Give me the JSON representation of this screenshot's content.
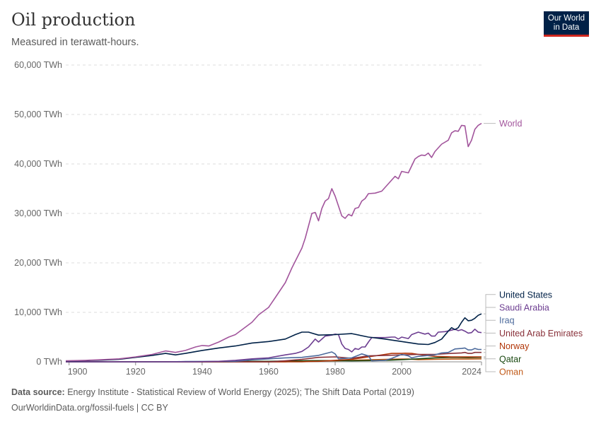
{
  "header": {
    "title": "Oil production",
    "subtitle": "Measured in terawatt-hours."
  },
  "logo": {
    "line1": "Our World",
    "line2": "in Data"
  },
  "footer": {
    "source_label": "Data source:",
    "source_text": "Energy Institute - Statistical Review of World Energy (2025); The Shift Data Portal (2019)",
    "url_text": "OurWorldinData.org/fossil-fuels | CC BY"
  },
  "chart_data": {
    "type": "line",
    "title": "Oil production",
    "subtitle": "Measured in terawatt-hours.",
    "xlim": [
      1899,
      2024
    ],
    "ylim": [
      0,
      60000
    ],
    "x_ticks": [
      1900,
      1920,
      1940,
      1960,
      1980,
      2000,
      2024
    ],
    "y_ticks": [
      {
        "value": 0,
        "label": "0 TWh"
      },
      {
        "value": 10000,
        "label": "10,000 TWh"
      },
      {
        "value": 20000,
        "label": "20,000 TWh"
      },
      {
        "value": 30000,
        "label": "30,000 TWh"
      },
      {
        "value": 40000,
        "label": "40,000 TWh"
      },
      {
        "value": 50000,
        "label": "50,000 TWh"
      },
      {
        "value": 60000,
        "label": "60,000 TWh"
      }
    ],
    "grid": true,
    "legend": "right (direct labels)",
    "series": [
      {
        "name": "World",
        "color": "#a2559c",
        "points": [
          [
            1899,
            200
          ],
          [
            1905,
            300
          ],
          [
            1910,
            450
          ],
          [
            1915,
            600
          ],
          [
            1920,
            1000
          ],
          [
            1925,
            1500
          ],
          [
            1929,
            2200
          ],
          [
            1932,
            1900
          ],
          [
            1935,
            2300
          ],
          [
            1938,
            3000
          ],
          [
            1940,
            3300
          ],
          [
            1942,
            3200
          ],
          [
            1945,
            4000
          ],
          [
            1948,
            5000
          ],
          [
            1950,
            5500
          ],
          [
            1952,
            6500
          ],
          [
            1955,
            8000
          ],
          [
            1957,
            9500
          ],
          [
            1960,
            11000
          ],
          [
            1962,
            13000
          ],
          [
            1965,
            16000
          ],
          [
            1967,
            19000
          ],
          [
            1970,
            23000
          ],
          [
            1971,
            25000
          ],
          [
            1972,
            27500
          ],
          [
            1973,
            30000
          ],
          [
            1974,
            30200
          ],
          [
            1975,
            28500
          ],
          [
            1976,
            31000
          ],
          [
            1977,
            32500
          ],
          [
            1978,
            33000
          ],
          [
            1979,
            35000
          ],
          [
            1980,
            33500
          ],
          [
            1981,
            31500
          ],
          [
            1982,
            29500
          ],
          [
            1983,
            29000
          ],
          [
            1984,
            29800
          ],
          [
            1985,
            29500
          ],
          [
            1986,
            31000
          ],
          [
            1987,
            31200
          ],
          [
            1988,
            32500
          ],
          [
            1989,
            33000
          ],
          [
            1990,
            34000
          ],
          [
            1992,
            34100
          ],
          [
            1994,
            34500
          ],
          [
            1996,
            36000
          ],
          [
            1998,
            37500
          ],
          [
            1999,
            37000
          ],
          [
            2000,
            38500
          ],
          [
            2002,
            38200
          ],
          [
            2004,
            41000
          ],
          [
            2005,
            41500
          ],
          [
            2006,
            41800
          ],
          [
            2007,
            41700
          ],
          [
            2008,
            42200
          ],
          [
            2009,
            41300
          ],
          [
            2010,
            42500
          ],
          [
            2012,
            44000
          ],
          [
            2014,
            44800
          ],
          [
            2015,
            46300
          ],
          [
            2016,
            46700
          ],
          [
            2017,
            46600
          ],
          [
            2018,
            47800
          ],
          [
            2019,
            47700
          ],
          [
            2020,
            43500
          ],
          [
            2021,
            44800
          ],
          [
            2022,
            47000
          ],
          [
            2023,
            47800
          ],
          [
            2024,
            48200
          ]
        ]
      },
      {
        "name": "United States",
        "color": "#002147",
        "points": [
          [
            1899,
            150
          ],
          [
            1905,
            250
          ],
          [
            1910,
            350
          ],
          [
            1915,
            500
          ],
          [
            1920,
            900
          ],
          [
            1925,
            1300
          ],
          [
            1929,
            1700
          ],
          [
            1932,
            1400
          ],
          [
            1935,
            1700
          ],
          [
            1940,
            2300
          ],
          [
            1945,
            2800
          ],
          [
            1950,
            3200
          ],
          [
            1955,
            3800
          ],
          [
            1960,
            4100
          ],
          [
            1965,
            4600
          ],
          [
            1968,
            5500
          ],
          [
            1970,
            6000
          ],
          [
            1972,
            6000
          ],
          [
            1975,
            5400
          ],
          [
            1980,
            5500
          ],
          [
            1985,
            5700
          ],
          [
            1990,
            5000
          ],
          [
            1995,
            4600
          ],
          [
            2000,
            4100
          ],
          [
            2005,
            3600
          ],
          [
            2008,
            3500
          ],
          [
            2010,
            3900
          ],
          [
            2012,
            4600
          ],
          [
            2014,
            6200
          ],
          [
            2015,
            6900
          ],
          [
            2016,
            6500
          ],
          [
            2017,
            6900
          ],
          [
            2018,
            8000
          ],
          [
            2019,
            8900
          ],
          [
            2020,
            8300
          ],
          [
            2021,
            8400
          ],
          [
            2022,
            8800
          ],
          [
            2023,
            9400
          ],
          [
            2024,
            9700
          ]
        ]
      },
      {
        "name": "Saudi Arabia",
        "color": "#6d3e91",
        "points": [
          [
            1899,
            0
          ],
          [
            1938,
            0
          ],
          [
            1945,
            100
          ],
          [
            1950,
            300
          ],
          [
            1955,
            600
          ],
          [
            1960,
            800
          ],
          [
            1965,
            1400
          ],
          [
            1968,
            1700
          ],
          [
            1970,
            2100
          ],
          [
            1972,
            3000
          ],
          [
            1974,
            4600
          ],
          [
            1975,
            4000
          ],
          [
            1977,
            5200
          ],
          [
            1979,
            5400
          ],
          [
            1980,
            5600
          ],
          [
            1981,
            5500
          ],
          [
            1982,
            3600
          ],
          [
            1983,
            2700
          ],
          [
            1984,
            2500
          ],
          [
            1985,
            2000
          ],
          [
            1986,
            2700
          ],
          [
            1987,
            2500
          ],
          [
            1988,
            3000
          ],
          [
            1989,
            3000
          ],
          [
            1990,
            4000
          ],
          [
            1991,
            4900
          ],
          [
            1993,
            4900
          ],
          [
            1995,
            4900
          ],
          [
            1997,
            5000
          ],
          [
            1998,
            5000
          ],
          [
            1999,
            4600
          ],
          [
            2000,
            5000
          ],
          [
            2002,
            4700
          ],
          [
            2003,
            5500
          ],
          [
            2005,
            6000
          ],
          [
            2007,
            5600
          ],
          [
            2008,
            5800
          ],
          [
            2009,
            5200
          ],
          [
            2010,
            5200
          ],
          [
            2011,
            6000
          ],
          [
            2013,
            6100
          ],
          [
            2015,
            6400
          ],
          [
            2016,
            6600
          ],
          [
            2017,
            6300
          ],
          [
            2018,
            6500
          ],
          [
            2019,
            6200
          ],
          [
            2020,
            5800
          ],
          [
            2021,
            5900
          ],
          [
            2022,
            6600
          ],
          [
            2023,
            6000
          ],
          [
            2024,
            5900
          ]
        ]
      },
      {
        "name": "Iraq",
        "color": "#4c6a9c",
        "points": [
          [
            1899,
            0
          ],
          [
            1930,
            0
          ],
          [
            1935,
            50
          ],
          [
            1950,
            100
          ],
          [
            1955,
            400
          ],
          [
            1960,
            600
          ],
          [
            1965,
            800
          ],
          [
            1970,
            900
          ],
          [
            1975,
            1300
          ],
          [
            1979,
            2000
          ],
          [
            1980,
            1600
          ],
          [
            1981,
            600
          ],
          [
            1985,
            800
          ],
          [
            1988,
            1600
          ],
          [
            1990,
            1200
          ],
          [
            1991,
            200
          ],
          [
            1995,
            300
          ],
          [
            1997,
            700
          ],
          [
            2000,
            1500
          ],
          [
            2002,
            1200
          ],
          [
            2003,
            800
          ],
          [
            2005,
            1100
          ],
          [
            2010,
            1400
          ],
          [
            2012,
            1800
          ],
          [
            2014,
            1900
          ],
          [
            2016,
            2600
          ],
          [
            2018,
            2700
          ],
          [
            2019,
            2800
          ],
          [
            2020,
            2400
          ],
          [
            2021,
            2400
          ],
          [
            2022,
            2700
          ],
          [
            2023,
            2500
          ],
          [
            2024,
            2500
          ]
        ]
      },
      {
        "name": "United Arab Emirates",
        "color": "#883039",
        "points": [
          [
            1899,
            0
          ],
          [
            1960,
            0
          ],
          [
            1962,
            50
          ],
          [
            1965,
            200
          ],
          [
            1970,
            500
          ],
          [
            1975,
            900
          ],
          [
            1980,
            1000
          ],
          [
            1985,
            700
          ],
          [
            1990,
            1200
          ],
          [
            1995,
            1300
          ],
          [
            2000,
            1400
          ],
          [
            2005,
            1500
          ],
          [
            2010,
            1500
          ],
          [
            2015,
            1700
          ],
          [
            2018,
            1800
          ],
          [
            2019,
            1900
          ],
          [
            2020,
            1700
          ],
          [
            2021,
            1700
          ],
          [
            2022,
            1900
          ],
          [
            2023,
            1900
          ],
          [
            2024,
            1900
          ]
        ]
      },
      {
        "name": "Norway",
        "color": "#b13507",
        "points": [
          [
            1899,
            0
          ],
          [
            1970,
            0
          ],
          [
            1972,
            50
          ],
          [
            1975,
            100
          ],
          [
            1980,
            300
          ],
          [
            1985,
            500
          ],
          [
            1990,
            1000
          ],
          [
            1995,
            1500
          ],
          [
            1997,
            1700
          ],
          [
            2000,
            1700
          ],
          [
            2001,
            1750
          ],
          [
            2003,
            1700
          ],
          [
            2005,
            1500
          ],
          [
            2008,
            1250
          ],
          [
            2010,
            1100
          ],
          [
            2015,
            1000
          ],
          [
            2020,
            1000
          ],
          [
            2022,
            1000
          ],
          [
            2024,
            1000
          ]
        ]
      },
      {
        "name": "Qatar",
        "color": "#18470f",
        "points": [
          [
            1899,
            0
          ],
          [
            1948,
            0
          ],
          [
            1950,
            50
          ],
          [
            1955,
            100
          ],
          [
            1960,
            100
          ],
          [
            1965,
            150
          ],
          [
            1970,
            200
          ],
          [
            1975,
            250
          ],
          [
            1980,
            250
          ],
          [
            1985,
            200
          ],
          [
            1990,
            250
          ],
          [
            1995,
            300
          ],
          [
            2000,
            450
          ],
          [
            2005,
            600
          ],
          [
            2010,
            800
          ],
          [
            2015,
            900
          ],
          [
            2020,
            850
          ],
          [
            2024,
            900
          ]
        ]
      },
      {
        "name": "Oman",
        "color": "#c05917",
        "points": [
          [
            1899,
            0
          ],
          [
            1965,
            0
          ],
          [
            1967,
            100
          ],
          [
            1970,
            200
          ],
          [
            1975,
            200
          ],
          [
            1980,
            200
          ],
          [
            1985,
            300
          ],
          [
            1990,
            400
          ],
          [
            1995,
            500
          ],
          [
            2000,
            550
          ],
          [
            2002,
            550
          ],
          [
            2005,
            450
          ],
          [
            2010,
            500
          ],
          [
            2015,
            550
          ],
          [
            2020,
            550
          ],
          [
            2024,
            600
          ]
        ]
      }
    ]
  }
}
